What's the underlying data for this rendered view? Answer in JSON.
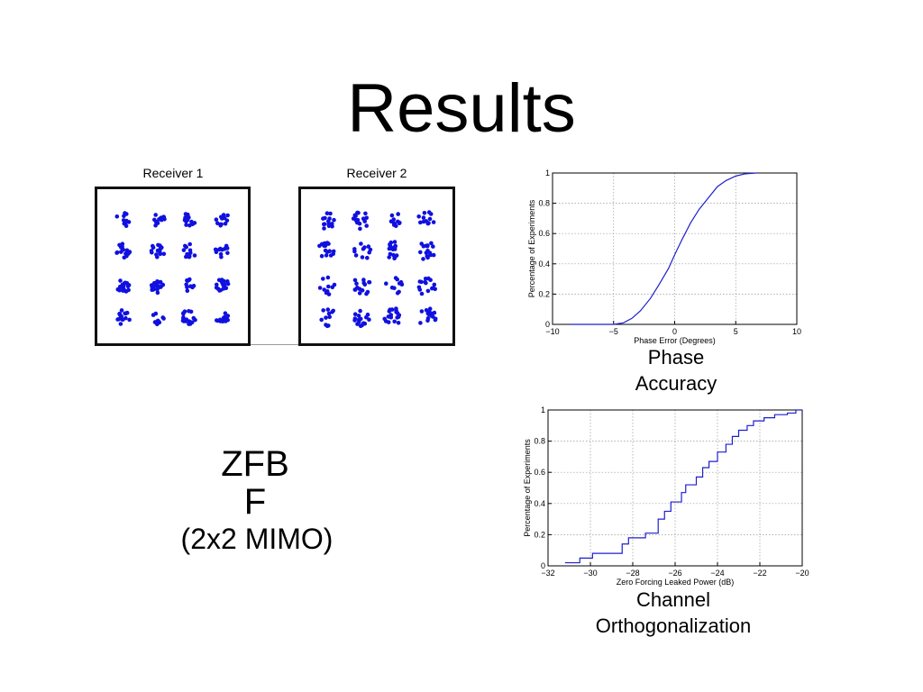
{
  "slide": {
    "title": "Results",
    "zfbf_line1": "ZFB",
    "zfbf_line2": "F",
    "mimo": "(2x2 MIMO)",
    "caption_phase": [
      "Phase",
      "Accuracy"
    ],
    "caption_channel": [
      "Channel",
      "Orthogonalization"
    ]
  },
  "constellations": [
    {
      "title": "Receiver 1"
    },
    {
      "title": "Receiver 2"
    }
  ],
  "colors": {
    "series": "#1f1fcc",
    "dots": "#1010e0",
    "grid": "#9a9a9a"
  },
  "chart_data": [
    {
      "type": "line",
      "title": "",
      "xlabel": "Phase Error (Degrees)",
      "ylabel": "Percentage of Experiments",
      "xlim": [
        -10,
        10
      ],
      "ylim": [
        0,
        1
      ],
      "xticks": [
        -10,
        -5,
        0,
        5,
        10
      ],
      "yticks": [
        0,
        0.2,
        0.4,
        0.6,
        0.8,
        1
      ],
      "grid": true,
      "series": [
        {
          "x": [
            -8.5,
            -5,
            -4.2,
            -3.5,
            -2.8,
            -2,
            -1.3,
            -0.5,
            0,
            0.6,
            1.3,
            2,
            2.8,
            3.5,
            4.2,
            5,
            5.8,
            6.7
          ],
          "y": [
            0,
            0,
            0.01,
            0.04,
            0.09,
            0.17,
            0.26,
            0.37,
            0.46,
            0.56,
            0.67,
            0.76,
            0.84,
            0.91,
            0.95,
            0.98,
            0.995,
            1
          ]
        }
      ]
    },
    {
      "type": "line",
      "title": "",
      "xlabel": "Zero Forcing Leaked Power (dB)",
      "ylabel": "Percentage of Experiments",
      "xlim": [
        -32,
        -20
      ],
      "ylim": [
        0,
        1
      ],
      "xticks": [
        -32,
        -30,
        -28,
        -26,
        -24,
        -22,
        -20
      ],
      "yticks": [
        0,
        0.2,
        0.4,
        0.6,
        0.8,
        1
      ],
      "grid": true,
      "series": [
        {
          "x": [
            -31.2,
            -30.5,
            -29.9,
            -28.5,
            -28.2,
            -27.4,
            -26.8,
            -26.5,
            -26.2,
            -25.7,
            -25.5,
            -25.0,
            -24.7,
            -24.4,
            -24.0,
            -23.6,
            -23.3,
            -23.0,
            -22.6,
            -22.3,
            -21.8,
            -21.3,
            -20.7,
            -20.3
          ],
          "y": [
            0.02,
            0.05,
            0.08,
            0.14,
            0.18,
            0.21,
            0.3,
            0.35,
            0.41,
            0.47,
            0.52,
            0.57,
            0.63,
            0.67,
            0.73,
            0.78,
            0.83,
            0.87,
            0.9,
            0.93,
            0.95,
            0.97,
            0.98,
            1.0
          ]
        }
      ]
    }
  ]
}
